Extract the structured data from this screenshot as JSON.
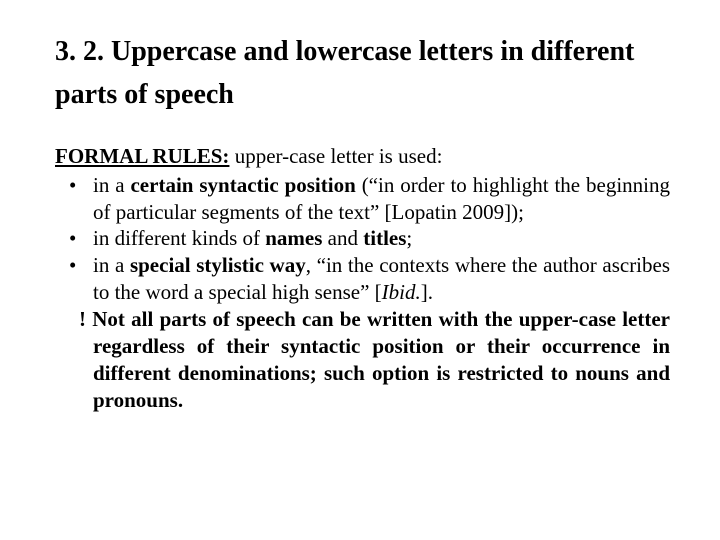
{
  "heading": "3. 2. Uppercase and lowercase letters in different parts of speech",
  "lead_label": "FORMAL RULES:",
  "lead_rest": " upper-case letter is used:",
  "bullets": [
    {
      "pre": "in a ",
      "bold": "certain syntactic position",
      "post": " (“in order to highlight the beginning of particular segments of the text” [Lopatin 2009]);"
    },
    {
      "pre": "in different kinds of ",
      "bold": "names",
      "mid": " and ",
      "bold2": "titles",
      "post": ";"
    },
    {
      "pre": "in a ",
      "bold": "special stylistic way",
      "post": ", “in the contexts where the author ascribes to the word a special high sense” [",
      "ital": "Ibid.",
      "post2": "]."
    }
  ],
  "note_bang": "!",
  "note_text": " Not all parts of speech can be written with the upper-case letter regardless of their syntactic position or their occurrence in different denominations; such option is restricted to nouns and pronouns."
}
